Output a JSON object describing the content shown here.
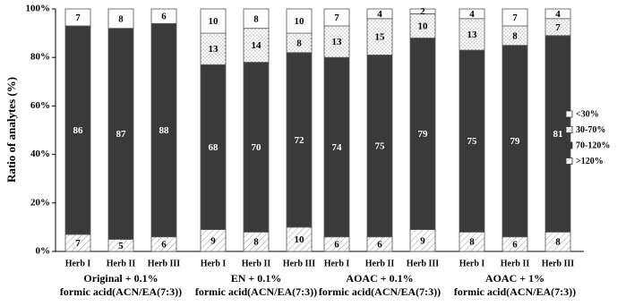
{
  "chart_data": {
    "type": "stacked_bar",
    "ylabel": "Ratio of analytes (%)",
    "categories": [
      "Herb I",
      "Herb II",
      "Herb III",
      "Herb I",
      "Herb II",
      "Herb III",
      "Herb I",
      "Herb II",
      "Herb III",
      "Herb I",
      "Herb II",
      "Herb III"
    ],
    "group_labels": [
      [
        "Original  + 0.1%",
        "formic  acid(ACN/EA(7:3))"
      ],
      [
        "EN + 0.1%",
        "formic  acid(ACN/EA(7:3))"
      ],
      [
        "AOAC + 0.1%",
        "formic  acid(ACN/EA(7:3))"
      ],
      [
        "AOAC + 1%",
        "formic  acid(ACN/EA(7:3))"
      ]
    ],
    "series": [
      {
        "name": ">120%",
        "color": "#ffffff",
        "pattern": "hatch",
        "values": [
          7,
          5,
          6,
          9,
          8,
          10,
          6,
          6,
          9,
          8,
          6,
          8
        ]
      },
      {
        "name": "70-120%",
        "color": "#3a3a3a",
        "values": [
          86,
          87,
          88,
          68,
          70,
          72,
          74,
          75,
          79,
          75,
          79,
          81
        ]
      },
      {
        "name": "30-70%",
        "color": "#ffffff",
        "pattern": "dots",
        "values": [
          0,
          0,
          0,
          13,
          14,
          8,
          13,
          15,
          10,
          13,
          8,
          7
        ]
      },
      {
        "name": "<30%",
        "color": "#ffffff",
        "values": [
          7,
          8,
          6,
          10,
          8,
          10,
          7,
          4,
          2,
          4,
          7,
          4
        ]
      }
    ],
    "ylim": [
      0,
      100
    ],
    "yticks": [
      {
        "value": 0,
        "label": "0%"
      },
      {
        "value": 20,
        "label": "20%"
      },
      {
        "value": 40,
        "label": "40%"
      },
      {
        "value": 60,
        "label": "60%"
      },
      {
        "value": 80,
        "label": "80%"
      },
      {
        "value": 100,
        "label": "100%"
      }
    ],
    "legend": "right"
  }
}
